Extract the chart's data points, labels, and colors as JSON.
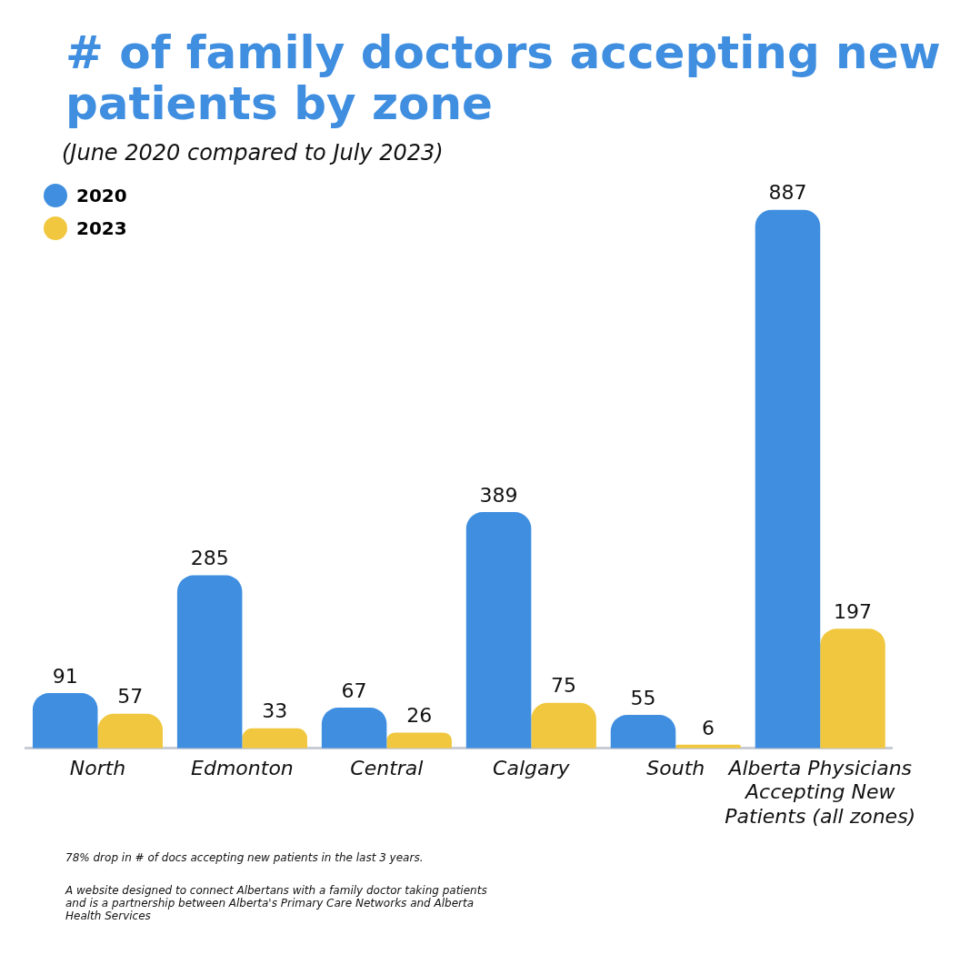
{
  "chart_data": {
    "type": "bar",
    "title": "# of family doctors accepting new patients by zone",
    "subtitle": "(June 2020 compared to July 2023)",
    "categories": [
      "North",
      "Edmonton",
      "Central",
      "Calgary",
      "South",
      "Alberta Physicians Accepting New Patients (all zones)"
    ],
    "series": [
      {
        "name": "2020",
        "color": "#3f8ee0",
        "values": [
          91,
          285,
          67,
          389,
          55,
          887
        ]
      },
      {
        "name": "2023",
        "color": "#f0c73e",
        "values": [
          57,
          33,
          26,
          75,
          6,
          197
        ]
      }
    ],
    "data_labels": true,
    "legend": "top left",
    "grid": false,
    "annotations": [
      "78% drop in # of docs accepting new patients in the last 3 years.",
      "A website designed to connect Albertans with a family doctor taking patients and is a partnership between Alberta's Primary Care Networks and Alberta Health Services"
    ]
  }
}
